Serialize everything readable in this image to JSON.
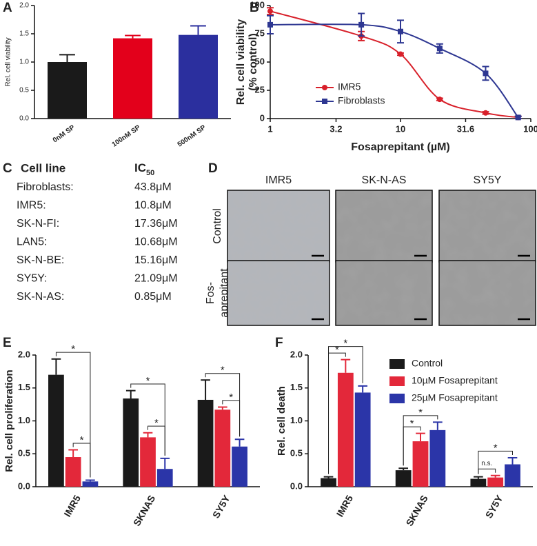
{
  "chart_data": [
    {
      "label": "A",
      "type": "bar",
      "ylabel": "Rel. cell viability",
      "categories": [
        "0nM SP",
        "100nM  SP",
        "500nM SP"
      ],
      "values": [
        1.0,
        1.42,
        1.48
      ],
      "errors": [
        0.13,
        0.05,
        0.16
      ],
      "colors": [
        "#1a1a1a",
        "#e3001b",
        "#2b2f9e"
      ],
      "ylim": [
        0,
        2
      ],
      "yticks": [
        {
          "value": 0,
          "label": "0.0"
        },
        {
          "value": 0.5,
          "label": "0.5"
        },
        {
          "value": 1,
          "label": "1.0"
        },
        {
          "value": 1.5,
          "label": "1.5"
        },
        {
          "value": 2,
          "label": "2.0"
        }
      ]
    },
    {
      "label": "B",
      "type": "line",
      "xscale": "log",
      "xlabel": "Fosaprepitant (µM)",
      "ylabel": [
        "Rel. cell viability",
        "(% control)"
      ],
      "legend": "lower left",
      "xlim": [
        1,
        100
      ],
      "xticks": [
        1,
        3.2,
        10,
        31.6,
        100
      ],
      "ylim": [
        0,
        100
      ],
      "yticks": [
        0,
        25,
        50,
        75,
        100
      ],
      "x": [
        1,
        5,
        10,
        20,
        45,
        80
      ],
      "series": [
        {
          "name": "IMR5",
          "color": "#d8202a",
          "marker": "circle",
          "values": [
            95,
            73,
            57,
            17,
            5,
            1
          ],
          "errors": [
            3,
            4,
            1,
            1,
            1,
            1
          ]
        },
        {
          "name": "Fibroblasts",
          "color": "#2e3792",
          "marker": "square",
          "values": [
            83,
            83,
            77,
            62,
            40,
            1
          ],
          "errors": [
            8,
            10,
            10,
            4,
            6,
            1
          ]
        }
      ]
    },
    {
      "label": "E",
      "type": "grouped_bar",
      "ylabel": "Rel. cell proliferation",
      "categories": [
        "IMR5",
        "SKNAS",
        "SY5Y"
      ],
      "ylim": [
        0,
        2
      ],
      "yticks": [
        {
          "value": 0,
          "label": "0.0"
        },
        {
          "value": 0.5,
          "label": "0.5"
        },
        {
          "value": 1,
          "label": "1.0"
        },
        {
          "value": 1.5,
          "label": "1.5"
        },
        {
          "value": 2,
          "label": "2.0"
        }
      ],
      "series": [
        {
          "color": "#1a1a1a",
          "values": [
            1.7,
            1.34,
            1.32
          ],
          "errors": [
            0.24,
            0.12,
            0.3
          ]
        },
        {
          "color": "#e3283a",
          "values": [
            0.45,
            0.75,
            1.17
          ],
          "errors": [
            0.11,
            0.07,
            0.04
          ]
        },
        {
          "color": "#2b35a8",
          "values": [
            0.08,
            0.27,
            0.61
          ],
          "errors": [
            0.02,
            0.16,
            0.11
          ]
        }
      ],
      "annotations": [
        {
          "group": 0,
          "between": [
            1,
            2
          ],
          "label": "*"
        },
        {
          "group": 0,
          "between": [
            0,
            2
          ],
          "label": "*"
        },
        {
          "group": 1,
          "between": [
            1,
            2
          ],
          "label": "*"
        },
        {
          "group": 1,
          "between": [
            0,
            2
          ],
          "label": "*"
        },
        {
          "group": 2,
          "between": [
            1,
            2
          ],
          "label": "*"
        },
        {
          "group": 2,
          "between": [
            0,
            2
          ],
          "label": "*"
        }
      ]
    },
    {
      "label": "F",
      "type": "grouped_bar",
      "ylabel": "Rel. cell death",
      "legend": "upper right",
      "categories": [
        "IMR5",
        "SKNAS",
        "SY5Y"
      ],
      "ylim": [
        0,
        2
      ],
      "yticks": [
        {
          "value": 0,
          "label": "0.0"
        },
        {
          "value": 0.5,
          "label": "0.5"
        },
        {
          "value": 1,
          "label": "1.0"
        },
        {
          "value": 1.5,
          "label": "1.5"
        },
        {
          "value": 2,
          "label": "2.0"
        }
      ],
      "series": [
        {
          "name": "Control",
          "color": "#1a1a1a",
          "values": [
            0.13,
            0.25,
            0.12
          ],
          "errors": [
            0.02,
            0.03,
            0.03
          ]
        },
        {
          "name": "10µM Fosaprepitant",
          "color": "#e3283a",
          "values": [
            1.73,
            0.69,
            0.14
          ],
          "errors": [
            0.2,
            0.12,
            0.03
          ]
        },
        {
          "name": "25µM Fosaprepitant",
          "color": "#2b35a8",
          "values": [
            1.43,
            0.86,
            0.34
          ],
          "errors": [
            0.1,
            0.12,
            0.1
          ]
        }
      ],
      "annotations": [
        {
          "group": 0,
          "between": [
            0,
            1
          ],
          "label": "*"
        },
        {
          "group": 0,
          "between": [
            0,
            2
          ],
          "label": "*"
        },
        {
          "group": 1,
          "between": [
            0,
            1
          ],
          "label": "*"
        },
        {
          "group": 1,
          "between": [
            0,
            2
          ],
          "label": "*"
        },
        {
          "group": 2,
          "between": [
            0,
            1
          ],
          "label": "n.s."
        },
        {
          "group": 2,
          "between": [
            0,
            2
          ],
          "label": "*"
        }
      ]
    }
  ],
  "table": {
    "panel_label": "C",
    "header": [
      "Cell line",
      {
        "text": "IC",
        "subscript": "50"
      }
    ],
    "rows": [
      [
        "Fibroblasts:",
        "43.8μM"
      ],
      [
        "IMR5:",
        "10.8μM"
      ],
      [
        "SK-N-FI:",
        "17.36μM"
      ],
      [
        "LAN5:",
        "10.68μM"
      ],
      [
        "SK-N-BE:",
        "15.16μM"
      ],
      [
        "SY5Y:",
        "21.09μM"
      ],
      [
        "SK-N-AS:",
        "0.85μM"
      ]
    ]
  },
  "micrographs": {
    "panel_label": "D",
    "columns": [
      "IMR5",
      "SK-N-AS",
      "SY5Y"
    ],
    "rows": [
      [
        "Control"
      ],
      [
        "Fos-",
        "aprepitant"
      ]
    ]
  }
}
